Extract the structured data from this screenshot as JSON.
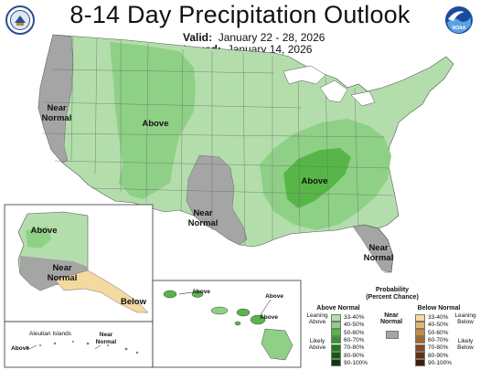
{
  "title": "8-14 Day Precipitation Outlook",
  "valid_label": "Valid:",
  "valid_dates": "January 22 - 28, 2026",
  "issued_label": "Issued:",
  "issued_date": "January 14, 2026",
  "logos": [
    {
      "name": "doc-seal-icon",
      "text": "DEPARTMENT OF COMMERCE"
    },
    {
      "name": "noaa-logo-icon",
      "text": "NOAA"
    }
  ],
  "map_labels": {
    "conus_near_normal_west": "Near Normal",
    "conus_above_west": "Above",
    "conus_near_normal_texas": "Near Normal",
    "conus_above_east": "Above",
    "conus_near_normal_florida": "Near Normal",
    "alaska_above": "Above",
    "alaska_near_normal": "Near Normal",
    "alaska_below": "Below",
    "aleutian_islands": "Aleutian Islands",
    "aleutian_above": "Above",
    "aleutian_near_normal": "Near Normal",
    "hawaii_above_left": "Above",
    "hawaii_above_right": "Above",
    "hawaii_above_bottom": "Above"
  },
  "legend": {
    "title_line1": "Probability",
    "title_line2": "(Percent Chance)",
    "above_header": "Above Normal",
    "near_header": "Near Normal",
    "below_header": "Below Normal",
    "leaning_above": "Leaning Above",
    "likely_above": "Likely Above",
    "leaning_below": "Leaning Below",
    "likely_below": "Likely Below",
    "above_levels": [
      {
        "label": "33-40%",
        "color": "#b3deac"
      },
      {
        "label": "40-50%",
        "color": "#8fd087"
      },
      {
        "label": "50-60%",
        "color": "#57b648"
      },
      {
        "label": "60-70%",
        "color": "#2e9a2c"
      },
      {
        "label": "70-80%",
        "color": "#1e7b1e"
      },
      {
        "label": "80-90%",
        "color": "#105c10"
      },
      {
        "label": "90-100%",
        "color": "#083d08"
      }
    ],
    "near_color": "#a5a5a5",
    "below_levels": [
      {
        "label": "33-40%",
        "color": "#f4d9a0"
      },
      {
        "label": "40-50%",
        "color": "#e6b56a"
      },
      {
        "label": "50-60%",
        "color": "#c9893f"
      },
      {
        "label": "60-70%",
        "color": "#a8672a"
      },
      {
        "label": "70-80%",
        "color": "#86481c"
      },
      {
        "label": "80-90%",
        "color": "#643010"
      },
      {
        "label": "90-100%",
        "color": "#431d08"
      }
    ]
  }
}
